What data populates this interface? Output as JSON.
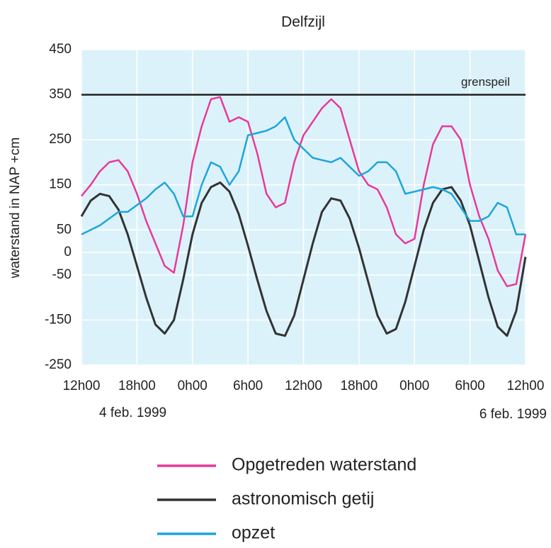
{
  "chart_data": {
    "type": "line",
    "title": "Delfzijl",
    "y_label": "waterstand in NAP  +cm",
    "x": [
      0,
      1,
      2,
      3,
      4,
      5,
      6,
      7,
      8,
      9,
      10,
      11,
      12,
      13,
      14,
      15,
      16,
      17,
      18,
      19,
      20,
      21,
      22,
      23,
      24,
      25,
      26,
      27,
      28,
      29,
      30,
      31,
      32,
      33,
      34,
      35,
      36,
      37,
      38,
      39,
      40,
      41,
      42,
      43,
      44,
      45,
      46,
      47,
      48
    ],
    "xlim": [
      0,
      48
    ],
    "xticks": [
      {
        "value": 0,
        "label": "12h00"
      },
      {
        "value": 6,
        "label": "18h00"
      },
      {
        "value": 12,
        "label": "0h00"
      },
      {
        "value": 18,
        "label": "6h00"
      },
      {
        "value": 24,
        "label": "12h00"
      },
      {
        "value": 30,
        "label": "18h00"
      },
      {
        "value": 36,
        "label": "0h00"
      },
      {
        "value": 42,
        "label": "6h00"
      },
      {
        "value": 48,
        "label": "12h00"
      }
    ],
    "date_labels": [
      "4 feb. 1999",
      "6 feb. 1999"
    ],
    "ylim": [
      -250,
      450
    ],
    "yticks": [
      450,
      350,
      250,
      150,
      50,
      0,
      -50,
      -150,
      -250
    ],
    "grid": true,
    "background": "#dcf2fa",
    "reference_lines": [
      {
        "value": 350,
        "label": "grenspeil",
        "color": "#222222"
      }
    ],
    "series": [
      {
        "name": "Opgetreden waterstand",
        "color": "#e8399a",
        "values": [
          125,
          150,
          180,
          200,
          205,
          180,
          130,
          70,
          20,
          -30,
          -45,
          60,
          200,
          280,
          340,
          345,
          290,
          300,
          290,
          220,
          130,
          100,
          110,
          200,
          260,
          290,
          320,
          340,
          320,
          250,
          180,
          150,
          140,
          100,
          40,
          20,
          30,
          150,
          240,
          280,
          280,
          250,
          150,
          80,
          30,
          -40,
          -75,
          -70,
          40
        ]
      },
      {
        "name": "astronomisch getij",
        "color": "#333333",
        "values": [
          80,
          115,
          130,
          125,
          95,
          40,
          -30,
          -100,
          -160,
          -180,
          -150,
          -60,
          40,
          110,
          145,
          155,
          135,
          85,
          15,
          -60,
          -130,
          -180,
          -185,
          -140,
          -60,
          20,
          90,
          120,
          115,
          75,
          10,
          -65,
          -140,
          -180,
          -170,
          -110,
          -30,
          50,
          110,
          140,
          145,
          115,
          60,
          -20,
          -100,
          -165,
          -185,
          -130,
          -10
        ]
      },
      {
        "name": "opzet",
        "color": "#1ea5dc",
        "values": [
          40,
          50,
          60,
          75,
          90,
          90,
          105,
          120,
          140,
          155,
          130,
          80,
          80,
          150,
          200,
          190,
          150,
          180,
          260,
          265,
          270,
          280,
          300,
          250,
          230,
          210,
          205,
          200,
          210,
          190,
          170,
          180,
          200,
          200,
          180,
          130,
          135,
          140,
          145,
          140,
          130,
          100,
          70,
          70,
          80,
          110,
          100,
          40,
          40
        ]
      }
    ]
  }
}
